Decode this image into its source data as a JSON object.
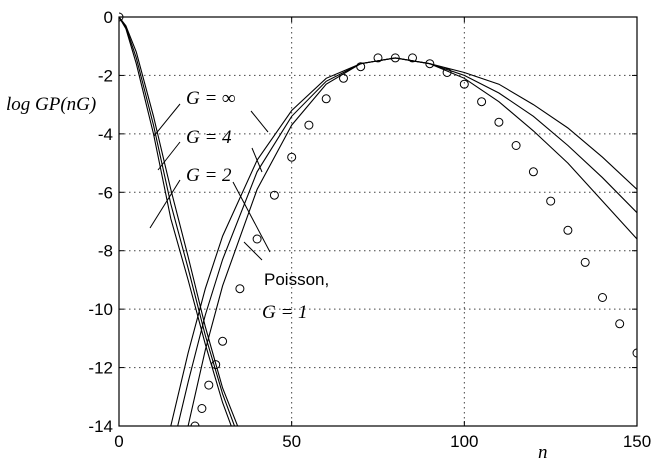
{
  "chart_data": {
    "type": "line",
    "title": "",
    "xlabel": "n",
    "ylabel": "log GP(nG)",
    "xlim": [
      0,
      150
    ],
    "ylim": [
      -14,
      0
    ],
    "xticks": [
      0,
      50,
      100,
      150
    ],
    "yticks": [
      0,
      -2,
      -4,
      -6,
      -8,
      -10,
      -12,
      -14
    ],
    "grid": true,
    "series": [
      {
        "name": "G = ∞",
        "style": "line",
        "x": [
          0,
          2,
          5,
          10,
          15,
          20,
          25,
          30,
          35
        ],
        "y": [
          0,
          -0.4,
          -1.6,
          -4.0,
          -6.9,
          -9.0,
          -11.2,
          -13.2,
          -14.8
        ]
      },
      {
        "name": "G = 4",
        "style": "line",
        "x": [
          0,
          2,
          5,
          10,
          15,
          20,
          25,
          30,
          35
        ],
        "y": [
          0,
          -0.35,
          -1.4,
          -3.7,
          -6.4,
          -8.6,
          -10.9,
          -12.9,
          -14.5
        ]
      },
      {
        "name": "G = 2",
        "style": "line",
        "x": [
          0,
          2,
          5,
          10,
          15,
          20,
          25,
          30,
          35
        ],
        "y": [
          0,
          -0.3,
          -1.2,
          -3.4,
          -5.9,
          -8.2,
          -10.6,
          -12.7,
          -14.2
        ]
      },
      {
        "name": "G = ∞",
        "style": "line",
        "x": [
          15,
          20,
          25,
          30,
          40,
          50,
          60,
          70,
          80,
          90,
          100,
          110,
          120,
          130,
          140,
          150
        ],
        "y": [
          -14.0,
          -11.5,
          -9.3,
          -7.5,
          -4.9,
          -3.2,
          -2.1,
          -1.6,
          -1.4,
          -1.6,
          -1.9,
          -2.3,
          -3.0,
          -3.8,
          -4.8,
          -5.9
        ]
      },
      {
        "name": "G = 4",
        "style": "line",
        "x": [
          17,
          20,
          25,
          30,
          40,
          50,
          60,
          70,
          80,
          90,
          100,
          110,
          120,
          130,
          140,
          150
        ],
        "y": [
          -14.0,
          -12.5,
          -10.2,
          -8.3,
          -5.3,
          -3.4,
          -2.2,
          -1.6,
          -1.4,
          -1.6,
          -2.0,
          -2.6,
          -3.4,
          -4.4,
          -5.5,
          -6.7
        ]
      },
      {
        "name": "G = 2",
        "style": "line",
        "x": [
          20,
          25,
          30,
          40,
          50,
          60,
          70,
          80,
          90,
          100,
          110,
          120,
          130,
          140,
          150
        ],
        "y": [
          -14.0,
          -11.4,
          -9.2,
          -5.9,
          -3.7,
          -2.3,
          -1.6,
          -1.4,
          -1.6,
          -2.1,
          -2.9,
          -3.9,
          -5.0,
          -6.3,
          -7.6
        ]
      },
      {
        "name": "Poisson, G = 1",
        "style": "markers",
        "x": [
          0,
          22,
          24,
          26,
          28,
          30,
          35,
          40,
          45,
          50,
          55,
          60,
          65,
          70,
          75,
          80,
          85,
          90,
          95,
          100,
          105,
          110,
          115,
          120,
          125,
          130,
          135,
          140,
          145,
          150
        ],
        "y": [
          0,
          -14.0,
          -13.4,
          -12.6,
          -11.9,
          -11.1,
          -9.3,
          -7.6,
          -6.1,
          -4.8,
          -3.7,
          -2.8,
          -2.1,
          -1.7,
          -1.4,
          -1.4,
          -1.4,
          -1.6,
          -1.9,
          -2.3,
          -2.9,
          -3.6,
          -4.4,
          -5.3,
          -6.3,
          -7.3,
          -8.4,
          -9.6,
          -10.5,
          -11.5
        ]
      }
    ],
    "annotations": [
      {
        "label": "G = ∞"
      },
      {
        "label": "G = 4"
      },
      {
        "label": "G = 2"
      },
      {
        "label_line1": "Poisson,",
        "label_line2": "G = 1"
      }
    ]
  }
}
